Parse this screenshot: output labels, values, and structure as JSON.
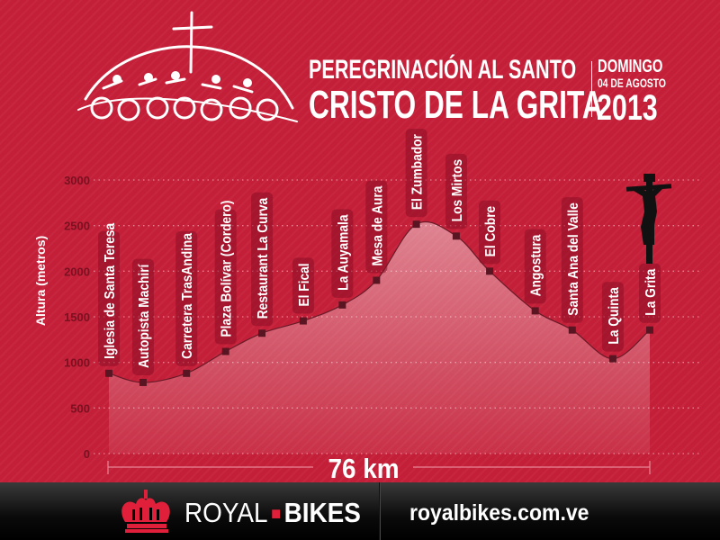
{
  "header": {
    "title_line1": "PEREGRINACIÓN AL SANTO",
    "title_line2": "CRISTO DE LA GRITA",
    "day": "DOMINGO",
    "date": "04 DE AGOSTO",
    "year": "2013"
  },
  "colors": {
    "background": "#c41f38",
    "marker": "#5a1522",
    "axis_text": "#7a1020",
    "footer": "#0a0a0a",
    "brand_red": "#e0203a"
  },
  "chart_data": {
    "type": "area",
    "title": "PEREGRINACIÓN AL SANTO CRISTO DE LA GRITA",
    "ylabel": "Altura (metros)",
    "xlabel": "76 km",
    "ylim": [
      0,
      3000
    ],
    "xlim": [
      0,
      76
    ],
    "yticks": [
      "0",
      "500",
      "1000",
      "1500",
      "2000",
      "2500",
      "3000"
    ],
    "grid": true,
    "points": [
      {
        "name": "Iglesia de Santa Teresa",
        "km": 0,
        "altitude": 880
      },
      {
        "name": "Autopista Machirí",
        "km": 4.8,
        "altitude": 780
      },
      {
        "name": "Carretera TrasAndina",
        "km": 10.9,
        "altitude": 880
      },
      {
        "name": "Plaza Bolívar (Cordero)",
        "km": 16.4,
        "altitude": 1120
      },
      {
        "name": "Restaurant La Curva",
        "km": 21.5,
        "altitude": 1320
      },
      {
        "name": "El Fical",
        "km": 27.3,
        "altitude": 1455
      },
      {
        "name": "La Auyamala",
        "km": 32.8,
        "altitude": 1630
      },
      {
        "name": "Mesa de Aura",
        "km": 37.6,
        "altitude": 1900
      },
      {
        "name": "El Zumbador",
        "km": 43.2,
        "altitude": 2515
      },
      {
        "name": "Los Mirtos",
        "km": 48.8,
        "altitude": 2385
      },
      {
        "name": "El Cobre",
        "km": 53.5,
        "altitude": 2000
      },
      {
        "name": "Angostura",
        "km": 59.9,
        "altitude": 1565
      },
      {
        "name": "Santa Ana del Valle",
        "km": 65.1,
        "altitude": 1355
      },
      {
        "name": "La Quinta",
        "km": 70.8,
        "altitude": 1040
      },
      {
        "name": "La Grita",
        "km": 76,
        "altitude": 1355
      }
    ]
  },
  "footer": {
    "brand_part1": "ROYAL",
    "brand_part2": "BIKES",
    "url": "royalbikes.com.ve"
  }
}
